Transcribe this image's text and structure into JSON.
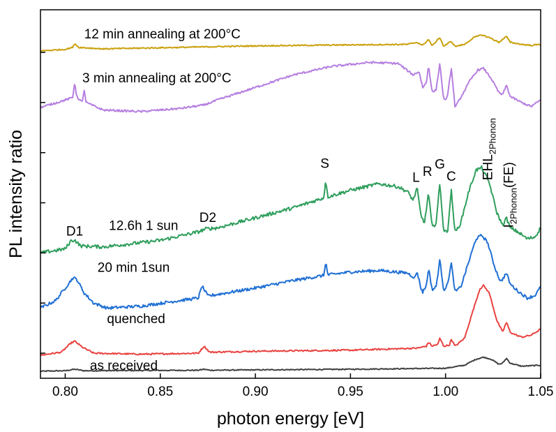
{
  "chart_data": {
    "type": "line",
    "xlabel": "photon energy [eV]",
    "ylabel": "PL intensity ratio",
    "xlim": [
      0.787,
      1.05
    ],
    "ylim": [
      0,
      7.35
    ],
    "xticks": [
      {
        "value": 0.8,
        "label": "0.80"
      },
      {
        "value": 0.85,
        "label": "0.85"
      },
      {
        "value": 0.9,
        "label": "0.90"
      },
      {
        "value": 0.95,
        "label": "0.95"
      },
      {
        "value": 1.0,
        "label": "1.00"
      },
      {
        "value": 1.05,
        "label": "1.05"
      }
    ],
    "yticks": [
      0.5,
      1.5,
      2.5,
      3.5,
      4.5,
      5.5,
      6.5
    ],
    "y_tick_labels_shown": false,
    "grid": false,
    "legend": "none",
    "series": [
      {
        "name": "as received",
        "color": "#404040",
        "noise": 0.01,
        "label_pos": [
          0.813,
          0.17
        ],
        "points": [
          [
            0.787,
            0.14
          ],
          [
            0.8,
            0.15
          ],
          [
            0.805,
            0.18
          ],
          [
            0.81,
            0.15
          ],
          [
            0.87,
            0.16
          ],
          [
            0.873,
            0.18
          ],
          [
            0.876,
            0.16
          ],
          [
            0.95,
            0.18
          ],
          [
            1.0,
            0.2
          ],
          [
            1.01,
            0.26
          ],
          [
            1.016,
            0.38
          ],
          [
            1.02,
            0.42
          ],
          [
            1.024,
            0.38
          ],
          [
            1.028,
            0.28
          ],
          [
            1.03,
            0.3
          ],
          [
            1.032,
            0.4
          ],
          [
            1.034,
            0.3
          ],
          [
            1.04,
            0.24
          ],
          [
            1.05,
            0.26
          ]
        ]
      },
      {
        "name": "quenched",
        "color": "#e8423f",
        "noise": 0.015,
        "label_pos": [
          0.822,
          1.1
        ],
        "points": [
          [
            0.787,
            0.46
          ],
          [
            0.798,
            0.52
          ],
          [
            0.803,
            0.7
          ],
          [
            0.805,
            0.74
          ],
          [
            0.809,
            0.62
          ],
          [
            0.815,
            0.5
          ],
          [
            0.84,
            0.48
          ],
          [
            0.87,
            0.5
          ],
          [
            0.873,
            0.64
          ],
          [
            0.876,
            0.52
          ],
          [
            0.9,
            0.54
          ],
          [
            0.95,
            0.56
          ],
          [
            0.985,
            0.6
          ],
          [
            0.99,
            0.64
          ],
          [
            0.991,
            0.72
          ],
          [
            0.993,
            0.64
          ],
          [
            0.996,
            0.68
          ],
          [
            0.997,
            0.8
          ],
          [
            0.999,
            0.64
          ],
          [
            1.002,
            0.66
          ],
          [
            1.003,
            0.78
          ],
          [
            1.005,
            0.64
          ],
          [
            1.01,
            0.8
          ],
          [
            1.014,
            1.3
          ],
          [
            1.018,
            1.78
          ],
          [
            1.02,
            1.85
          ],
          [
            1.023,
            1.7
          ],
          [
            1.027,
            1.15
          ],
          [
            1.03,
            0.92
          ],
          [
            1.032,
            1.12
          ],
          [
            1.034,
            0.92
          ],
          [
            1.036,
            0.88
          ],
          [
            1.04,
            0.82
          ],
          [
            1.045,
            0.86
          ],
          [
            1.05,
            0.98
          ]
        ]
      },
      {
        "name": "20 min 1sun",
        "color": "#1f6fd4",
        "noise": 0.03,
        "label_pos": [
          0.817,
          2.12
        ],
        "points": [
          [
            0.787,
            1.4
          ],
          [
            0.795,
            1.55
          ],
          [
            0.8,
            1.8
          ],
          [
            0.804,
            2.0
          ],
          [
            0.806,
            1.98
          ],
          [
            0.81,
            1.7
          ],
          [
            0.815,
            1.5
          ],
          [
            0.822,
            1.4
          ],
          [
            0.84,
            1.44
          ],
          [
            0.86,
            1.55
          ],
          [
            0.87,
            1.6
          ],
          [
            0.872,
            1.84
          ],
          [
            0.875,
            1.64
          ],
          [
            0.9,
            1.8
          ],
          [
            0.92,
            1.95
          ],
          [
            0.936,
            2.05
          ],
          [
            0.937,
            2.34
          ],
          [
            0.938,
            2.06
          ],
          [
            0.95,
            2.12
          ],
          [
            0.965,
            2.15
          ],
          [
            0.98,
            2.1
          ],
          [
            0.984,
            2.0
          ],
          [
            0.985,
            2.14
          ],
          [
            0.987,
            1.8
          ],
          [
            0.988,
            1.72
          ],
          [
            0.99,
            1.86
          ],
          [
            0.991,
            2.2
          ],
          [
            0.993,
            1.76
          ],
          [
            0.995,
            1.82
          ],
          [
            0.997,
            2.36
          ],
          [
            0.999,
            1.76
          ],
          [
            1.001,
            1.86
          ],
          [
            1.003,
            2.3
          ],
          [
            1.005,
            1.72
          ],
          [
            1.008,
            1.82
          ],
          [
            1.012,
            2.3
          ],
          [
            1.016,
            2.78
          ],
          [
            1.019,
            2.85
          ],
          [
            1.022,
            2.72
          ],
          [
            1.026,
            2.2
          ],
          [
            1.029,
            1.92
          ],
          [
            1.032,
            2.1
          ],
          [
            1.034,
            1.88
          ],
          [
            1.038,
            1.74
          ],
          [
            1.043,
            1.6
          ],
          [
            1.047,
            1.65
          ],
          [
            1.05,
            1.82
          ]
        ]
      },
      {
        "name": "12.6h 1 sun",
        "color": "#2f9e5c",
        "noise": 0.035,
        "label_pos": [
          0.823,
          2.96
        ],
        "points": [
          [
            0.787,
            2.5
          ],
          [
            0.8,
            2.58
          ],
          [
            0.803,
            2.74
          ],
          [
            0.805,
            2.76
          ],
          [
            0.808,
            2.64
          ],
          [
            0.82,
            2.62
          ],
          [
            0.85,
            2.75
          ],
          [
            0.87,
            2.92
          ],
          [
            0.874,
            2.98
          ],
          [
            0.88,
            3.0
          ],
          [
            0.9,
            3.2
          ],
          [
            0.92,
            3.4
          ],
          [
            0.928,
            3.5
          ],
          [
            0.936,
            3.6
          ],
          [
            0.937,
            3.98
          ],
          [
            0.938,
            3.62
          ],
          [
            0.95,
            3.75
          ],
          [
            0.965,
            3.88
          ],
          [
            0.975,
            3.82
          ],
          [
            0.98,
            3.72
          ],
          [
            0.983,
            3.55
          ],
          [
            0.985,
            3.8
          ],
          [
            0.987,
            3.25
          ],
          [
            0.989,
            3.1
          ],
          [
            0.991,
            3.7
          ],
          [
            0.993,
            3.0
          ],
          [
            0.995,
            3.1
          ],
          [
            0.997,
            3.88
          ],
          [
            0.999,
            2.95
          ],
          [
            1.001,
            2.9
          ],
          [
            1.003,
            3.75
          ],
          [
            1.005,
            2.9
          ],
          [
            1.008,
            3.1
          ],
          [
            1.012,
            3.7
          ],
          [
            1.016,
            4.15
          ],
          [
            1.019,
            4.2
          ],
          [
            1.023,
            3.9
          ],
          [
            1.027,
            3.3
          ],
          [
            1.03,
            3.05
          ],
          [
            1.032,
            3.2
          ],
          [
            1.034,
            3.0
          ],
          [
            1.038,
            2.92
          ],
          [
            1.043,
            2.78
          ],
          [
            1.047,
            2.82
          ],
          [
            1.05,
            3.0
          ]
        ]
      },
      {
        "name": "3 min annealing at 200°C",
        "color": "#b57ee0",
        "noise": 0.02,
        "label_pos": [
          0.809,
          5.9
        ],
        "points": [
          [
            0.787,
            5.4
          ],
          [
            0.8,
            5.55
          ],
          [
            0.804,
            5.6
          ],
          [
            0.805,
            5.92
          ],
          [
            0.806,
            5.62
          ],
          [
            0.809,
            5.5
          ],
          [
            0.81,
            5.76
          ],
          [
            0.811,
            5.5
          ],
          [
            0.82,
            5.35
          ],
          [
            0.84,
            5.32
          ],
          [
            0.86,
            5.38
          ],
          [
            0.873,
            5.45
          ],
          [
            0.88,
            5.55
          ],
          [
            0.9,
            5.8
          ],
          [
            0.92,
            6.05
          ],
          [
            0.94,
            6.22
          ],
          [
            0.96,
            6.3
          ],
          [
            0.975,
            6.28
          ],
          [
            0.983,
            6.05
          ],
          [
            0.986,
            6.12
          ],
          [
            0.988,
            5.8
          ],
          [
            0.99,
            5.9
          ],
          [
            0.991,
            6.25
          ],
          [
            0.993,
            5.7
          ],
          [
            0.995,
            5.75
          ],
          [
            0.997,
            6.28
          ],
          [
            0.999,
            5.55
          ],
          [
            1.001,
            5.6
          ],
          [
            1.003,
            6.2
          ],
          [
            1.005,
            5.4
          ],
          [
            1.008,
            5.6
          ],
          [
            1.013,
            5.95
          ],
          [
            1.017,
            6.15
          ],
          [
            1.02,
            6.18
          ],
          [
            1.024,
            5.98
          ],
          [
            1.028,
            5.7
          ],
          [
            1.03,
            5.65
          ],
          [
            1.032,
            5.85
          ],
          [
            1.034,
            5.62
          ],
          [
            1.04,
            5.5
          ],
          [
            1.045,
            5.42
          ],
          [
            1.05,
            5.55
          ]
        ]
      },
      {
        "name": "12 min annealing at 200°C",
        "color": "#c9a00b",
        "noise": 0.012,
        "label_pos": [
          0.81,
          6.78
        ],
        "points": [
          [
            0.787,
            6.53
          ],
          [
            0.8,
            6.56
          ],
          [
            0.804,
            6.6
          ],
          [
            0.805,
            6.68
          ],
          [
            0.807,
            6.6
          ],
          [
            0.82,
            6.57
          ],
          [
            0.86,
            6.6
          ],
          [
            0.9,
            6.63
          ],
          [
            0.95,
            6.65
          ],
          [
            0.98,
            6.66
          ],
          [
            0.985,
            6.7
          ],
          [
            0.988,
            6.64
          ],
          [
            0.991,
            6.76
          ],
          [
            0.993,
            6.63
          ],
          [
            0.997,
            6.8
          ],
          [
            0.999,
            6.62
          ],
          [
            1.003,
            6.72
          ],
          [
            1.005,
            6.62
          ],
          [
            1.01,
            6.66
          ],
          [
            1.015,
            6.8
          ],
          [
            1.019,
            6.85
          ],
          [
            1.024,
            6.78
          ],
          [
            1.028,
            6.7
          ],
          [
            1.032,
            6.82
          ],
          [
            1.034,
            6.7
          ],
          [
            1.04,
            6.66
          ],
          [
            1.045,
            6.64
          ],
          [
            1.05,
            6.66
          ]
        ]
      }
    ],
    "annotations": [
      {
        "text": "D1",
        "x": 0.805,
        "y": 2.85
      },
      {
        "text": "D2",
        "x": 0.875,
        "y": 3.12
      },
      {
        "text": "S",
        "x": 0.9365,
        "y": 4.2
      },
      {
        "text": "L",
        "x": 0.9845,
        "y": 3.92
      },
      {
        "text": "R",
        "x": 0.9905,
        "y": 4.04
      },
      {
        "text": "G",
        "x": 0.997,
        "y": 4.18
      },
      {
        "text": "C",
        "x": 1.003,
        "y": 3.94
      }
    ],
    "vertical_labels": [
      {
        "text": "EHL",
        "sub": "2Phonon",
        "x": 1.0245,
        "y": 3.95
      },
      {
        "text": "I",
        "sub": "2Phonon",
        "tail": "(FE)",
        "x": 1.0355,
        "y": 3.0
      }
    ]
  }
}
